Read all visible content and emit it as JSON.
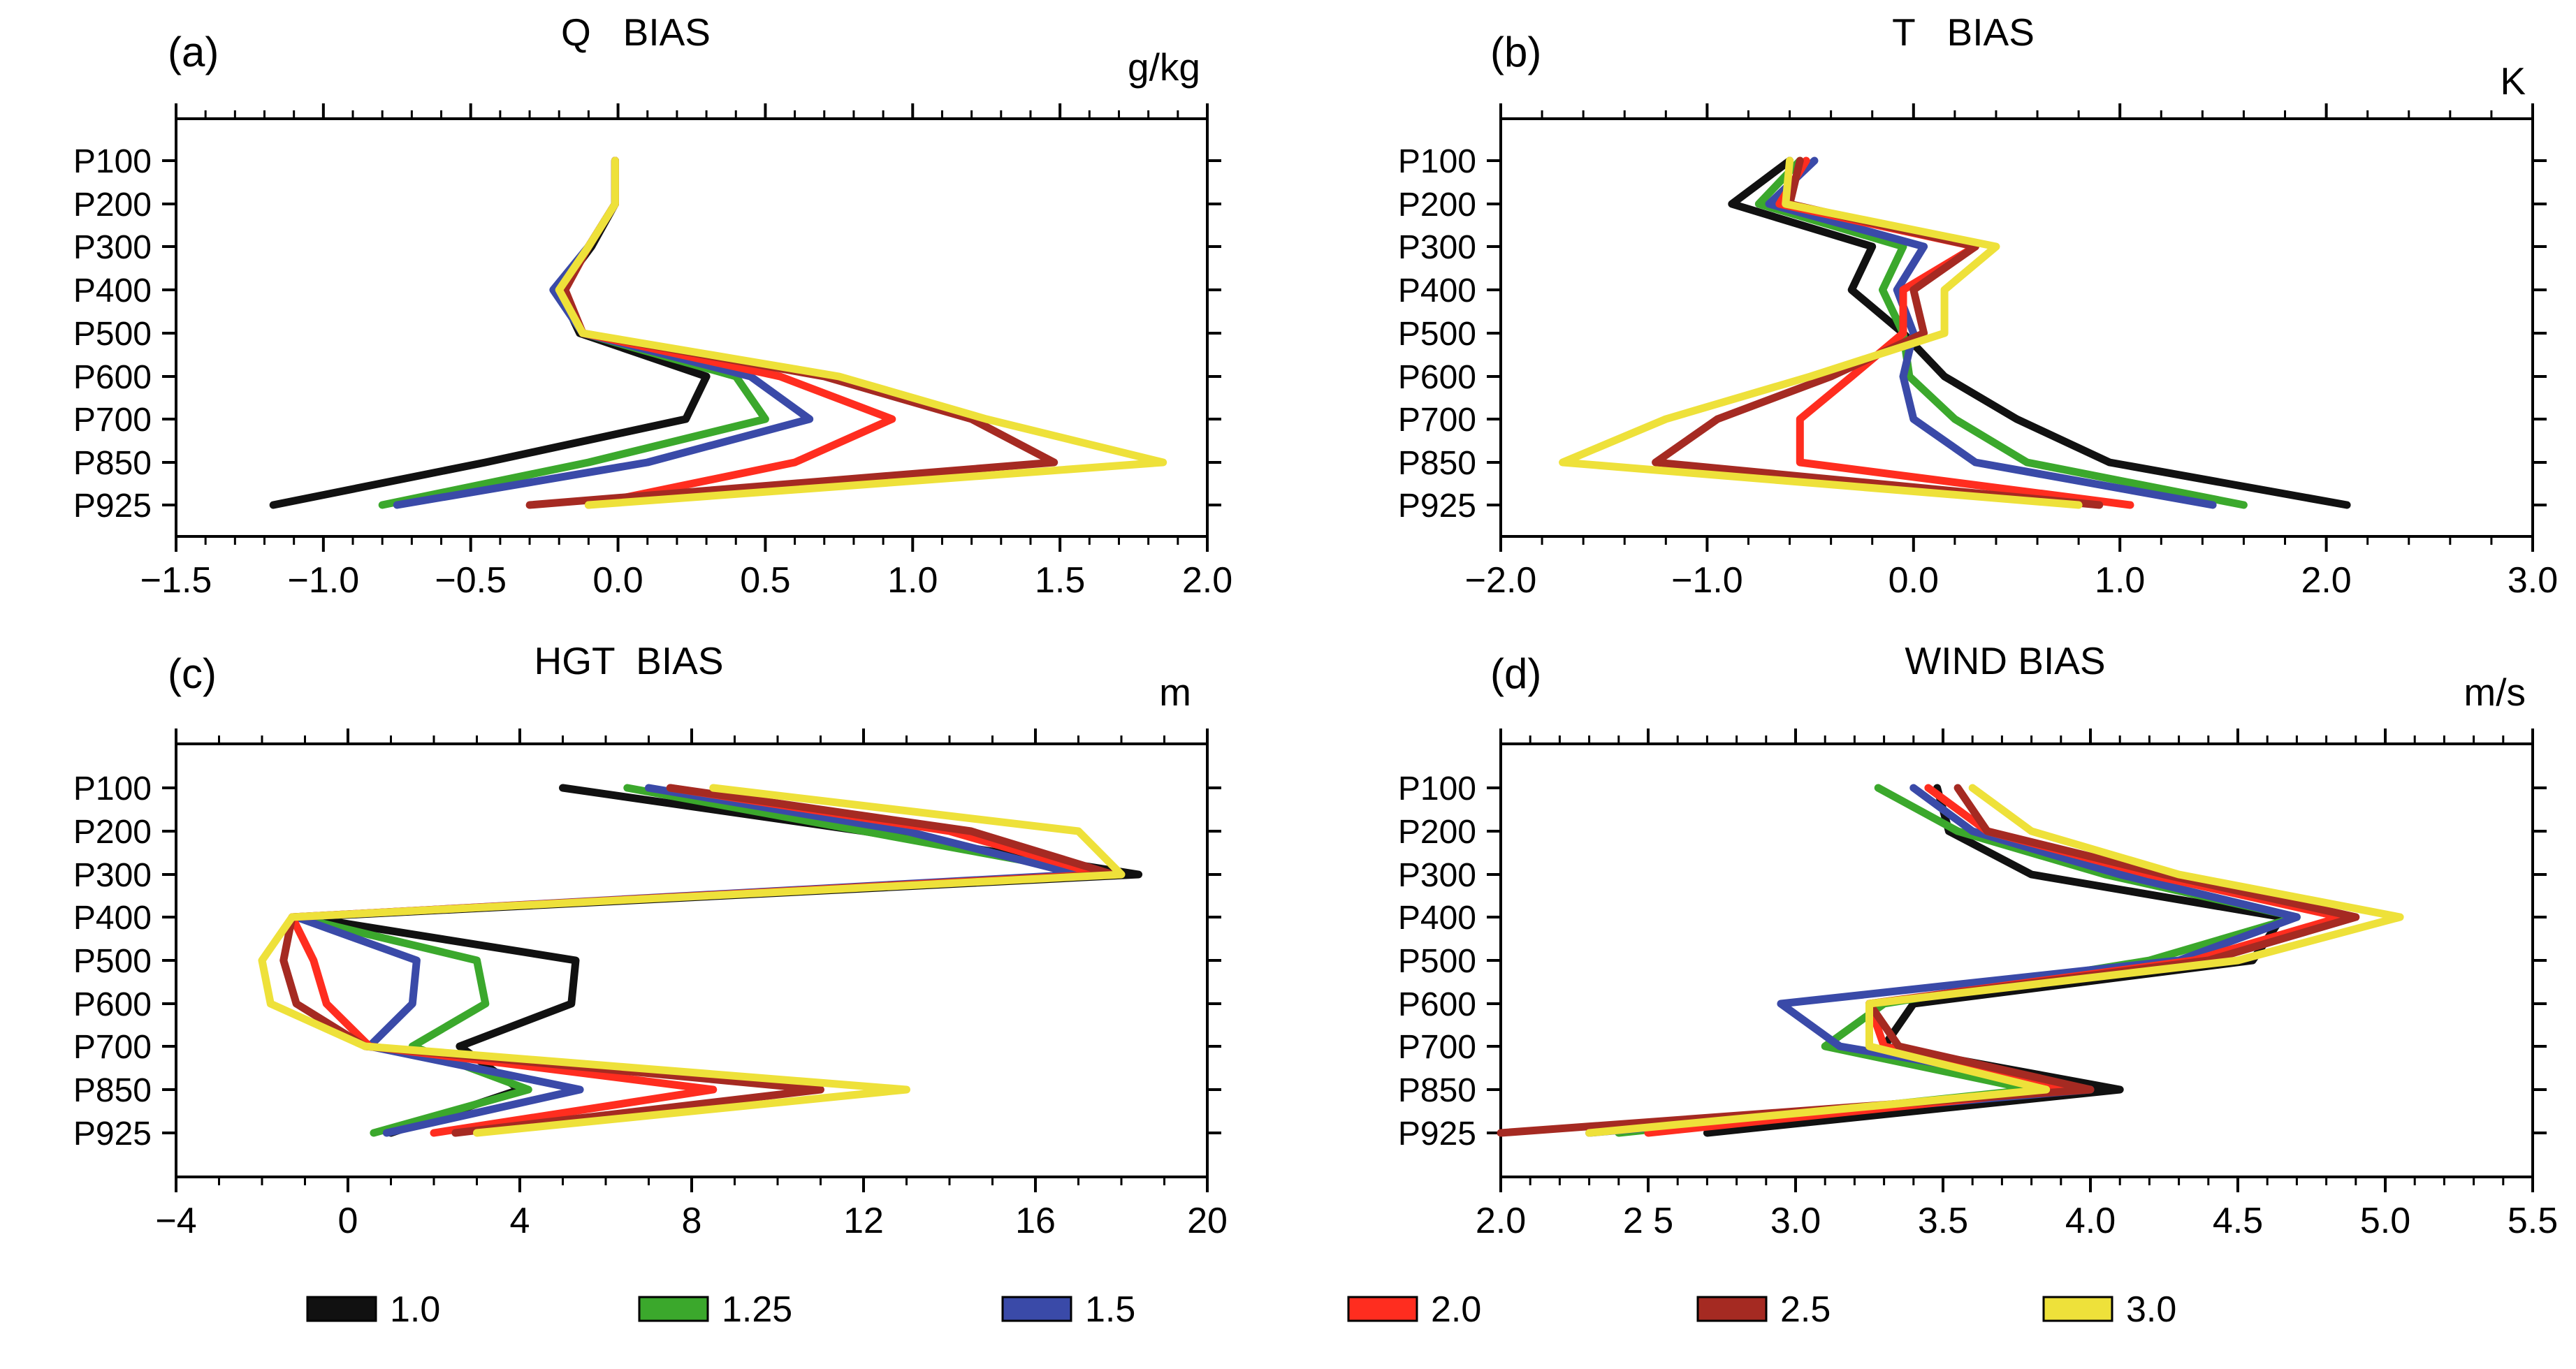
{
  "chart_data": [
    {
      "type": "line",
      "panel": "(a)",
      "title": "Q   BIAS",
      "unit": "g/kg",
      "xlim": [
        -1.5,
        2.0
      ],
      "xticks": [
        "−1.5",
        "−1.0",
        "−0.5",
        "0.0",
        "0.5",
        "1.0",
        "1.5",
        "2.0"
      ],
      "categories": [
        "P100",
        "P200",
        "P300",
        "P400",
        "P500",
        "P600",
        "P700",
        "P850",
        "P925"
      ],
      "series": [
        {
          "name": "1.0",
          "values": [
            -0.01,
            -0.01,
            -0.09,
            -0.2,
            -0.13,
            0.3,
            0.23,
            -0.45,
            -1.17
          ]
        },
        {
          "name": "1.25",
          "values": [
            -0.01,
            -0.01,
            -0.1,
            -0.2,
            -0.12,
            0.4,
            0.5,
            -0.1,
            -0.8
          ]
        },
        {
          "name": "1.5",
          "values": [
            -0.01,
            -0.01,
            -0.1,
            -0.22,
            -0.12,
            0.45,
            0.65,
            0.1,
            -0.75
          ]
        },
        {
          "name": "2.0",
          "values": [
            -0.01,
            -0.01,
            -0.1,
            -0.18,
            -0.12,
            0.55,
            0.93,
            0.6,
            -0.1
          ]
        },
        {
          "name": "2.5",
          "values": [
            -0.01,
            -0.01,
            -0.1,
            -0.18,
            -0.12,
            0.7,
            1.2,
            1.48,
            -0.3
          ]
        },
        {
          "name": "3.0",
          "values": [
            -0.01,
            -0.01,
            -0.1,
            -0.2,
            -0.12,
            0.75,
            1.25,
            1.85,
            -0.1
          ]
        }
      ]
    },
    {
      "type": "line",
      "panel": "(b)",
      "title": "T   BIAS",
      "unit": "K",
      "xlim": [
        -2.0,
        3.0
      ],
      "xticks": [
        "−2.0",
        "−1.0",
        "0.0",
        "1.0",
        "2.0",
        "3.0"
      ],
      "categories": [
        "P100",
        "P200",
        "P300",
        "P400",
        "P500",
        "P600",
        "P700",
        "P850",
        "P925"
      ],
      "series": [
        {
          "name": "1.0",
          "values": [
            -0.6,
            -0.88,
            -0.2,
            -0.3,
            -0.05,
            0.15,
            0.5,
            0.95,
            2.1
          ]
        },
        {
          "name": "1.25",
          "values": [
            -0.55,
            -0.75,
            -0.05,
            -0.15,
            -0.05,
            -0.02,
            0.2,
            0.55,
            1.6
          ]
        },
        {
          "name": "1.5",
          "values": [
            -0.48,
            -0.7,
            0.05,
            -0.08,
            0.0,
            -0.05,
            0.0,
            0.3,
            1.45
          ]
        },
        {
          "name": "2.0",
          "values": [
            -0.52,
            -0.65,
            0.3,
            -0.05,
            -0.05,
            -0.3,
            -0.55,
            -0.55,
            1.05
          ]
        },
        {
          "name": "2.5",
          "values": [
            -0.55,
            -0.6,
            0.3,
            0.0,
            0.05,
            -0.4,
            -0.95,
            -1.25,
            0.9
          ]
        },
        {
          "name": "3.0",
          "values": [
            -0.6,
            -0.62,
            0.4,
            0.15,
            0.15,
            -0.5,
            -1.2,
            -1.7,
            0.8
          ]
        }
      ]
    },
    {
      "type": "line",
      "panel": "(c)",
      "title": "HGT  BIAS",
      "unit": "m",
      "xlim": [
        -4,
        20
      ],
      "xticks": [
        "−4",
        "0",
        "4",
        "8",
        "12",
        "16",
        "20"
      ],
      "categories": [
        "P100",
        "P200",
        "P300",
        "P400",
        "P500",
        "P600",
        "P700",
        "P850",
        "P925"
      ],
      "series": [
        {
          "name": "1.0",
          "values": [
            5.0,
            12.0,
            18.4,
            -1.0,
            5.3,
            5.2,
            2.6,
            4.0,
            1.0
          ]
        },
        {
          "name": "1.25",
          "values": [
            6.5,
            12.0,
            17.5,
            -1.2,
            3.0,
            3.2,
            1.5,
            4.2,
            0.6
          ]
        },
        {
          "name": "1.5",
          "values": [
            7.0,
            13.0,
            17.0,
            -1.2,
            1.6,
            1.5,
            0.5,
            5.4,
            0.9
          ]
        },
        {
          "name": "2.0",
          "values": [
            7.5,
            14.0,
            17.5,
            -1.3,
            -0.8,
            -0.5,
            0.5,
            8.5,
            2.0
          ]
        },
        {
          "name": "2.5",
          "values": [
            7.5,
            14.5,
            17.8,
            -1.3,
            -1.5,
            -1.2,
            0.4,
            11.0,
            2.5
          ]
        },
        {
          "name": "3.0",
          "values": [
            8.5,
            17.0,
            18.0,
            -1.3,
            -2.0,
            -1.8,
            0.4,
            13.0,
            3.0
          ]
        }
      ]
    },
    {
      "type": "line",
      "panel": "(d)",
      "title": "WIND BIAS",
      "unit": "m/s",
      "xlim": [
        2.0,
        5.5
      ],
      "xticks": [
        "2.0",
        "2 5",
        "3.0",
        "3.5",
        "4.0",
        "4.5",
        "5.0",
        "5.5"
      ],
      "categories": [
        "P100",
        "P200",
        "P300",
        "P400",
        "P500",
        "P600",
        "P700",
        "P850",
        "P925"
      ],
      "series": [
        {
          "name": "1.0",
          "values": [
            3.48,
            3.52,
            3.8,
            4.65,
            4.55,
            3.4,
            3.3,
            4.1,
            2.7
          ]
        },
        {
          "name": "1.25",
          "values": [
            3.28,
            3.55,
            4.05,
            4.7,
            4.2,
            3.3,
            3.1,
            3.8,
            2.4
          ]
        },
        {
          "name": "1.5",
          "values": [
            3.4,
            3.6,
            4.1,
            4.7,
            4.3,
            2.95,
            3.15,
            4.0,
            2.3
          ]
        },
        {
          "name": "2.0",
          "values": [
            3.45,
            3.65,
            4.2,
            4.85,
            4.35,
            3.25,
            3.3,
            3.9,
            2.5
          ]
        },
        {
          "name": "2.5",
          "values": [
            3.55,
            3.65,
            4.25,
            4.9,
            4.4,
            3.25,
            3.35,
            4.0,
            2.0
          ]
        },
        {
          "name": "3.0",
          "values": [
            3.6,
            3.8,
            4.3,
            5.05,
            4.5,
            3.25,
            3.25,
            3.85,
            2.3
          ]
        }
      ]
    }
  ],
  "legend": [
    {
      "label": "1.0",
      "color": "#111111"
    },
    {
      "label": "1.25",
      "color": "#3ba82c"
    },
    {
      "label": "1.5",
      "color": "#3a4aa8"
    },
    {
      "label": "2.0",
      "color": "#ff2d1f"
    },
    {
      "label": "2.5",
      "color": "#a52a22"
    },
    {
      "label": "3.0",
      "color": "#eee13a"
    }
  ]
}
